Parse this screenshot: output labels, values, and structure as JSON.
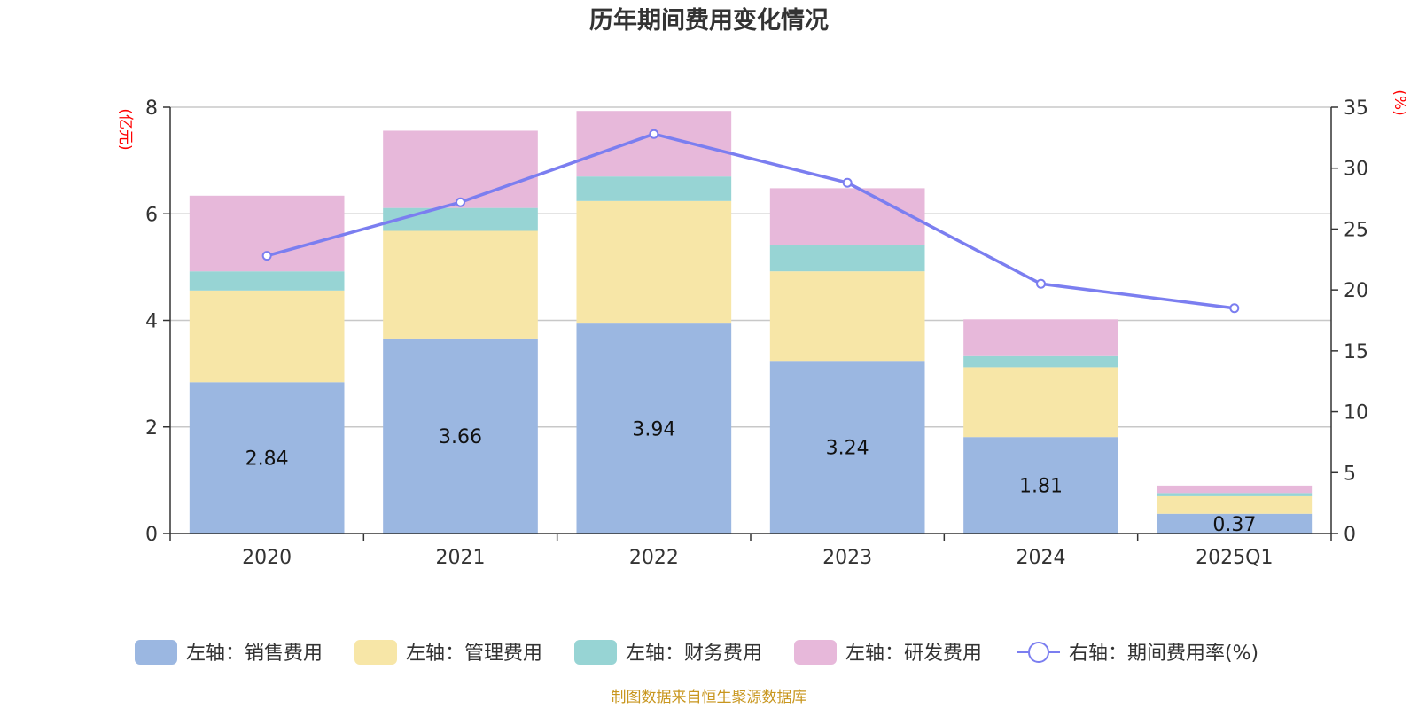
{
  "chart_data": {
    "type": "bar",
    "title": "历年期间费用变化情况",
    "categories": [
      "2020",
      "2021",
      "2022",
      "2023",
      "2024",
      "2025Q1"
    ],
    "left_axis": {
      "unit_label": "(亿元)",
      "ylim": [
        0,
        8
      ],
      "ticks": [
        0,
        2,
        4,
        6,
        8
      ]
    },
    "right_axis": {
      "unit_label": "(%)",
      "ylim": [
        0,
        35
      ],
      "ticks": [
        0,
        5,
        10,
        15,
        20,
        25,
        30,
        35
      ]
    },
    "stacked": true,
    "series": [
      {
        "name": "左轴：销售费用",
        "axis": "left",
        "type": "bar",
        "color": "#9bb7e1",
        "values": [
          2.84,
          3.66,
          3.94,
          3.24,
          1.81,
          0.37
        ],
        "show_labels": true
      },
      {
        "name": "左轴：管理费用",
        "axis": "left",
        "type": "bar",
        "color": "#f7e6a7",
        "values": [
          1.72,
          2.02,
          2.3,
          1.68,
          1.31,
          0.33
        ]
      },
      {
        "name": "左轴：财务费用",
        "axis": "left",
        "type": "bar",
        "color": "#97d4d4",
        "values": [
          0.36,
          0.43,
          0.46,
          0.5,
          0.21,
          0.06
        ]
      },
      {
        "name": "左轴：研发费用",
        "axis": "left",
        "type": "bar",
        "color": "#e7b8da",
        "values": [
          1.42,
          1.45,
          1.23,
          1.06,
          0.69,
          0.14
        ]
      },
      {
        "name": "右轴：期间费用率(%)",
        "axis": "right",
        "type": "line",
        "color": "#7b7ef0",
        "values": [
          22.8,
          27.2,
          32.8,
          28.8,
          20.5,
          18.5
        ]
      }
    ],
    "grid": true,
    "legend_position": "bottom"
  },
  "source_note": "制图数据来自恒生聚源数据库"
}
